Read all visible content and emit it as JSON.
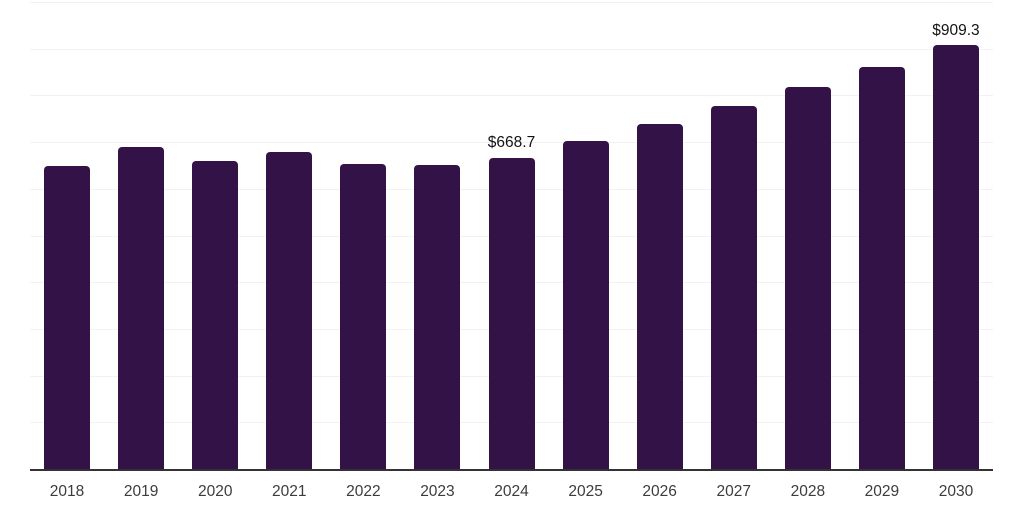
{
  "chart_data": {
    "type": "bar",
    "title": "",
    "xlabel": "",
    "ylabel": "",
    "categories": [
      "2018",
      "2019",
      "2020",
      "2021",
      "2022",
      "2023",
      "2024",
      "2025",
      "2026",
      "2027",
      "2028",
      "2029",
      "2030"
    ],
    "values": [
      650.0,
      692.0,
      662.0,
      680.0,
      656.0,
      653.0,
      668.7,
      703.9,
      740.9,
      779.8,
      820.8,
      864.0,
      909.3
    ],
    "data_labels": [
      {
        "category": "2024",
        "text": "$668.7"
      },
      {
        "category": "2030",
        "text": "$909.3"
      }
    ],
    "ylim": [
      0,
      1000
    ],
    "gridline_interval": 100,
    "grid": "horizontal",
    "legend": "none",
    "axis_ticks_y_visible": false,
    "colors": {
      "bar": "#331247",
      "gridline": "#f2f2f2",
      "axis_line": "#333333",
      "tick_label": "#3c3c3c",
      "data_label": "#131313",
      "background": "#ffffff"
    }
  }
}
